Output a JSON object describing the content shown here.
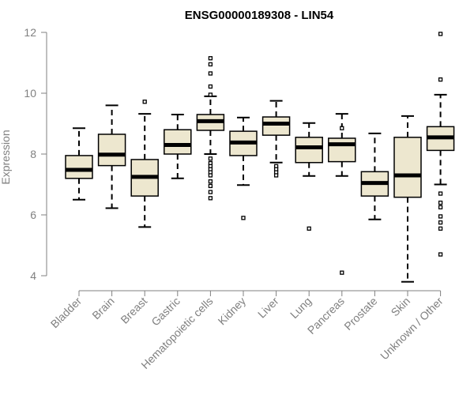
{
  "chart_data": {
    "type": "boxplot",
    "title": "ENSG00000189308 - LIN54",
    "xlabel": "",
    "ylabel": "Expression",
    "ylim": [
      3.8,
      12.2
    ],
    "yticks": [
      4,
      6,
      8,
      10,
      12
    ],
    "colors": {
      "box_fill": "#ede7cf",
      "stroke": "#000000",
      "axis": "#808080",
      "tick_text": "#808080"
    },
    "categories": [
      "Bladder",
      "Brain",
      "Breast",
      "Gastric",
      "Hematopoietic cells",
      "Kidney",
      "Liver",
      "Lung",
      "Pancreas",
      "Prostate",
      "Skin",
      "Unknown / Other"
    ],
    "boxes": [
      {
        "name": "Bladder",
        "whisker_low": 6.5,
        "q1": 7.2,
        "median": 7.48,
        "q3": 7.95,
        "whisker_high": 8.85,
        "outliers": []
      },
      {
        "name": "Brain",
        "whisker_low": 6.22,
        "q1": 7.62,
        "median": 7.98,
        "q3": 8.65,
        "whisker_high": 9.6,
        "outliers": []
      },
      {
        "name": "Breast",
        "whisker_low": 5.6,
        "q1": 6.62,
        "median": 7.25,
        "q3": 7.82,
        "whisker_high": 9.32,
        "outliers": [
          9.72
        ]
      },
      {
        "name": "Gastric",
        "whisker_low": 7.2,
        "q1": 8.0,
        "median": 8.3,
        "q3": 8.8,
        "whisker_high": 9.3,
        "outliers": []
      },
      {
        "name": "Hematopoietic cells",
        "whisker_low": 8.0,
        "q1": 8.78,
        "median": 9.08,
        "q3": 9.3,
        "whisker_high": 9.9,
        "outliers": [
          11.15,
          10.95,
          10.65,
          10.22,
          9.95,
          7.85,
          7.7,
          7.6,
          7.5,
          7.4,
          7.3,
          7.1,
          6.95,
          6.75,
          6.55
        ]
      },
      {
        "name": "Kidney",
        "whisker_low": 6.98,
        "q1": 7.95,
        "median": 8.38,
        "q3": 8.75,
        "whisker_high": 9.2,
        "outliers": [
          5.9
        ]
      },
      {
        "name": "Liver",
        "whisker_low": 7.72,
        "q1": 8.62,
        "median": 9.0,
        "q3": 9.22,
        "whisker_high": 9.75,
        "outliers": [
          7.6,
          7.5,
          7.4,
          7.3
        ]
      },
      {
        "name": "Lung",
        "whisker_low": 7.28,
        "q1": 7.72,
        "median": 8.22,
        "q3": 8.55,
        "whisker_high": 9.02,
        "outliers": [
          5.55
        ]
      },
      {
        "name": "Pancreas",
        "whisker_low": 7.28,
        "q1": 7.75,
        "median": 8.32,
        "q3": 8.52,
        "whisker_high": 9.32,
        "outliers": [
          8.85,
          4.1
        ]
      },
      {
        "name": "Prostate",
        "whisker_low": 5.85,
        "q1": 6.62,
        "median": 7.05,
        "q3": 7.42,
        "whisker_high": 8.68,
        "outliers": []
      },
      {
        "name": "Skin",
        "whisker_low": 3.8,
        "q1": 6.58,
        "median": 7.3,
        "q3": 8.55,
        "whisker_high": 9.25,
        "outliers": []
      },
      {
        "name": "Unknown / Other",
        "whisker_low": 7.0,
        "q1": 8.12,
        "median": 8.55,
        "q3": 8.9,
        "whisker_high": 9.95,
        "outliers": [
          11.95,
          10.45,
          6.7,
          6.4,
          6.25,
          5.95,
          5.75,
          5.55,
          4.7
        ]
      }
    ]
  }
}
